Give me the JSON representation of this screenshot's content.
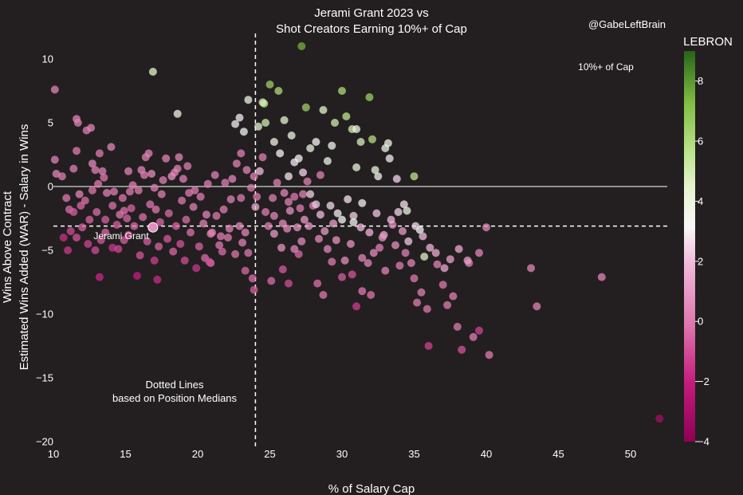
{
  "chart_data": {
    "type": "scatter",
    "title_line1": "Jerami Grant 2023 vs",
    "title_line2": "Shot Creators Earning 10%+ of Cap",
    "watermark": "@GabeLeftBrain",
    "xlabel": "% of Salary Cap",
    "ylabel_line1": "Wins Above Contract",
    "ylabel_line2": "Estimated Wins Added (WAR) - Salary in Wins",
    "xlim": [
      10,
      53
    ],
    "ylim": [
      -20,
      11
    ],
    "xticks": [
      "10",
      "15",
      "20",
      "25",
      "30",
      "35",
      "40",
      "45",
      "50"
    ],
    "yticks": [
      "10",
      "5",
      "0",
      "−5",
      "−10",
      "−15",
      "−20"
    ],
    "colorbar": {
      "label": "LEBRON",
      "range": [
        -4,
        9
      ],
      "ticks": [
        "8",
        "6",
        "4",
        "2",
        "0",
        "−2",
        "−4"
      ],
      "low_color": "#8e0152",
      "mid_color": "#f7f7f7",
      "high_color": "#276419"
    },
    "zero_line": 0,
    "median_x": 24,
    "median_y": -3.1,
    "annotations": {
      "cap_note": "10%+ of Cap",
      "player_label": "Jerami Grant",
      "medians_note_1": "Dotted Lines",
      "medians_note_2": "based on Position Medians"
    },
    "highlight": {
      "name": "Jerami Grant",
      "x": 16.9,
      "y": -3.2,
      "lebron": 0.6
    },
    "points": [
      [
        10.1,
        7.6,
        0.3
      ],
      [
        10.1,
        2.1,
        0.2
      ],
      [
        10.2,
        1.0,
        0.4
      ],
      [
        10.6,
        0.8,
        0.1
      ],
      [
        10.9,
        -0.9,
        0.0
      ],
      [
        11.1,
        -1.8,
        -0.3
      ],
      [
        11.4,
        1.4,
        0.2
      ],
      [
        11.6,
        2.8,
        0.1
      ],
      [
        11.8,
        -0.6,
        0.4
      ],
      [
        11.6,
        5.3,
        0.3
      ],
      [
        11.7,
        5.0,
        0.2
      ],
      [
        12.3,
        4.4,
        0.1
      ],
      [
        12.6,
        4.6,
        0.3
      ],
      [
        12.7,
        1.8,
        0.5
      ],
      [
        12.9,
        1.3,
        0.2
      ],
      [
        13.2,
        2.6,
        0.1
      ],
      [
        13.4,
        1.2,
        0.3
      ],
      [
        13.5,
        0.7,
        0.0
      ],
      [
        13.7,
        -0.5,
        0.2
      ],
      [
        14.0,
        3.1,
        0.4
      ],
      [
        14.2,
        -0.4,
        0.1
      ],
      [
        14.6,
        -2.2,
        0.0
      ],
      [
        14.9,
        -1.9,
        -0.2
      ],
      [
        15.2,
        1.2,
        0.3
      ],
      [
        15.5,
        0.1,
        0.2
      ],
      [
        15.9,
        -0.3,
        0.1
      ],
      [
        16.1,
        1.3,
        0.4
      ],
      [
        16.4,
        2.3,
        0.2
      ],
      [
        16.6,
        2.6,
        0.3
      ],
      [
        16.8,
        1.0,
        0.6
      ],
      [
        17.1,
        -1.8,
        0.0
      ],
      [
        17.5,
        -0.6,
        0.2
      ],
      [
        17.8,
        2.2,
        0.3
      ],
      [
        18.2,
        0.8,
        0.8
      ],
      [
        18.4,
        1.1,
        0.5
      ],
      [
        18.7,
        2.3,
        0.4
      ],
      [
        18.6,
        1.4,
        0.3
      ],
      [
        19.0,
        0.6,
        0.2
      ],
      [
        19.3,
        1.6,
        0.1
      ],
      [
        19.4,
        -0.5,
        0.0
      ],
      [
        19.7,
        -1.6,
        0.2
      ],
      [
        20.2,
        -0.8,
        0.1
      ],
      [
        20.6,
        -2.2,
        0.3
      ],
      [
        21.0,
        -3.6,
        0.2
      ],
      [
        21.3,
        -2.3,
        0.0
      ],
      [
        21.8,
        -1.8,
        0.1
      ],
      [
        21.9,
        0.3,
        0.2
      ],
      [
        22.3,
        -1.0,
        0.3
      ],
      [
        22.4,
        0.6,
        0.4
      ],
      [
        22.7,
        1.8,
        0.2
      ],
      [
        23.0,
        -0.9,
        0.1
      ],
      [
        23.0,
        2.6,
        0.2
      ],
      [
        23.4,
        1.3,
        0.3
      ],
      [
        23.7,
        -0.1,
        0.1
      ],
      [
        23.9,
        0.8,
        0.2
      ],
      [
        24.1,
        -0.8,
        0.0
      ],
      [
        24.5,
        2.3,
        0.2
      ],
      [
        24.7,
        -2.0,
        0.1
      ],
      [
        25.2,
        -0.9,
        0.2
      ],
      [
        25.5,
        0.3,
        0.3
      ],
      [
        26.0,
        -0.5,
        0.4
      ],
      [
        26.3,
        -1.2,
        0.2
      ],
      [
        26.7,
        -0.8,
        0.0
      ],
      [
        27.1,
        -1.7,
        0.1
      ],
      [
        27.3,
        -0.6,
        0.3
      ],
      [
        27.6,
        0.4,
        0.2
      ],
      [
        28.0,
        -1.5,
        0.2
      ],
      [
        28.5,
        0.9,
        0.3
      ],
      [
        11.2,
        -3.5,
        -1.0
      ],
      [
        11.6,
        -4.0,
        -0.8
      ],
      [
        12.0,
        -3.2,
        -0.5
      ],
      [
        12.4,
        -4.5,
        -1.2
      ],
      [
        12.9,
        -5.0,
        -1.0
      ],
      [
        13.3,
        -4.2,
        -0.7
      ],
      [
        13.6,
        -3.6,
        -0.4
      ],
      [
        14.1,
        -4.8,
        -1.5
      ],
      [
        14.5,
        -4.9,
        -1.1
      ],
      [
        14.9,
        -4.2,
        -0.6
      ],
      [
        15.2,
        -3.8,
        -0.9
      ],
      [
        15.6,
        -3.1,
        -0.3
      ],
      [
        16.0,
        -5.4,
        -0.8
      ],
      [
        16.5,
        -4.3,
        -0.6
      ],
      [
        17.0,
        -5.8,
        -1.3
      ],
      [
        17.3,
        -4.7,
        -0.5
      ],
      [
        17.9,
        -4.1,
        -0.7
      ],
      [
        18.3,
        -5.1,
        -0.4
      ],
      [
        18.8,
        -4.5,
        -0.9
      ],
      [
        19.1,
        -5.8,
        -1.0
      ],
      [
        19.5,
        -3.6,
        -0.2
      ],
      [
        20.1,
        -4.7,
        -0.5
      ],
      [
        20.5,
        -5.6,
        -0.3
      ],
      [
        20.9,
        -6.0,
        -0.2
      ],
      [
        21.5,
        -4.6,
        0.0
      ],
      [
        21.7,
        -5.1,
        -0.3
      ],
      [
        22.1,
        -4.0,
        0.1
      ],
      [
        22.6,
        -5.3,
        -0.1
      ],
      [
        23.1,
        -4.4,
        0.2
      ],
      [
        23.5,
        -5.2,
        0.0
      ],
      [
        23.3,
        -6.6,
        -0.4
      ],
      [
        23.8,
        -7.2,
        -0.2
      ],
      [
        11.0,
        -5.0,
        -1.4
      ],
      [
        10.7,
        -4.0,
        -1.6
      ],
      [
        13.2,
        -7.1,
        -1.8
      ],
      [
        15.8,
        -7.0,
        -2.0
      ],
      [
        17.2,
        -7.3,
        -1.7
      ],
      [
        19.9,
        -6.4,
        -1.5
      ],
      [
        20.8,
        -5.9,
        -0.9
      ],
      [
        23.9,
        -8.1,
        -0.6
      ],
      [
        25.1,
        -7.4,
        -0.3
      ],
      [
        25.9,
        -6.5,
        -0.7
      ],
      [
        26.3,
        -7.6,
        -1.0
      ],
      [
        27.0,
        -5.3,
        -0.4
      ],
      [
        28.3,
        -7.6,
        -0.2
      ],
      [
        28.7,
        -8.5,
        0.0
      ],
      [
        29.3,
        -5.9,
        0.1
      ],
      [
        30.0,
        -7.1,
        -0.6
      ],
      [
        30.7,
        -6.9,
        -0.8
      ],
      [
        31.0,
        -9.4,
        -1.3
      ],
      [
        31.4,
        -8.2,
        0.0
      ],
      [
        31.8,
        -6.0,
        0.4
      ],
      [
        32.0,
        -8.5,
        -0.1
      ],
      [
        32.6,
        -4.8,
        0.2
      ],
      [
        33.0,
        -6.6,
        0.3
      ],
      [
        33.5,
        -3.0,
        0.5
      ],
      [
        34.0,
        -6.2,
        0.1
      ],
      [
        34.4,
        -5.2,
        0.2
      ],
      [
        34.8,
        -6.0,
        0.4
      ],
      [
        35.0,
        -7.2,
        0.0
      ],
      [
        35.2,
        -9.1,
        0.1
      ],
      [
        35.5,
        -8.3,
        0.2
      ],
      [
        35.9,
        -9.6,
        0.0
      ],
      [
        36.0,
        -12.5,
        -1.2
      ],
      [
        36.6,
        -6.1,
        0.3
      ],
      [
        37.0,
        -7.7,
        0.0
      ],
      [
        37.3,
        -9.3,
        0.1
      ],
      [
        37.7,
        -8.6,
        0.2
      ],
      [
        38.0,
        -11.0,
        0.0
      ],
      [
        38.3,
        -12.8,
        -0.8
      ],
      [
        38.8,
        -6.0,
        0.3
      ],
      [
        39.1,
        -11.8,
        0.1
      ],
      [
        39.5,
        -11.3,
        -1.2
      ],
      [
        40.2,
        -13.2,
        0.1
      ],
      [
        39.5,
        -5.2,
        0.4
      ],
      [
        40.0,
        -3.2,
        0.5
      ],
      [
        43.1,
        -6.4,
        0.4
      ],
      [
        43.5,
        -9.4,
        0.3
      ],
      [
        48.0,
        -7.1,
        0.4
      ],
      [
        52.0,
        -18.2,
        -3.1
      ],
      [
        24.0,
        -1.6,
        1.5
      ],
      [
        24.3,
        1.2,
        2.0
      ],
      [
        24.6,
        6.5,
        5.5
      ],
      [
        25.0,
        8.0,
        6.5
      ],
      [
        25.6,
        7.5,
        6.0
      ],
      [
        26.0,
        5.2,
        4.5
      ],
      [
        26.5,
        4.0,
        3.8
      ],
      [
        27.0,
        2.2,
        3.5
      ],
      [
        27.2,
        11.0,
        7.5
      ],
      [
        27.5,
        6.2,
        6.5
      ],
      [
        27.8,
        3.0,
        4.0
      ],
      [
        28.2,
        3.5,
        3.2
      ],
      [
        28.7,
        6.0,
        4.5
      ],
      [
        29.0,
        2.0,
        3.8
      ],
      [
        29.5,
        5.0,
        5.0
      ],
      [
        30.0,
        7.5,
        6.0
      ],
      [
        30.3,
        5.5,
        5.5
      ],
      [
        30.7,
        4.5,
        5.0
      ],
      [
        31.0,
        1.5,
        4.2
      ],
      [
        31.3,
        3.5,
        4.8
      ],
      [
        31.9,
        7.0,
        6.5
      ],
      [
        32.1,
        3.7,
        5.8
      ],
      [
        32.3,
        1.3,
        4.0
      ],
      [
        32.5,
        0.8,
        3.5
      ],
      [
        33.0,
        3.0,
        4.0
      ],
      [
        33.3,
        2.2,
        3.0
      ],
      [
        33.8,
        0.6,
        2.5
      ],
      [
        34.5,
        -1.9,
        4.0
      ],
      [
        35.0,
        0.8,
        5.5
      ],
      [
        35.4,
        -3.4,
        3.2
      ],
      [
        35.7,
        -5.5,
        4.6
      ],
      [
        22.9,
        5.4,
        3.0
      ],
      [
        23.2,
        4.3,
        3.5
      ],
      [
        23.5,
        6.8,
        4.0
      ],
      [
        24.2,
        4.7,
        4.5
      ],
      [
        24.7,
        5.0,
        5.0
      ],
      [
        25.3,
        3.5,
        3.8
      ],
      [
        25.7,
        2.6,
        3.2
      ],
      [
        26.3,
        0.8,
        2.8
      ],
      [
        26.7,
        1.9,
        3.0
      ],
      [
        27.3,
        1.1,
        2.5
      ],
      [
        27.8,
        -0.6,
        2.4
      ],
      [
        28.2,
        -1.4,
        2.2
      ],
      [
        28.5,
        -2.2,
        2.0
      ],
      [
        29.2,
        -1.5,
        2.6
      ],
      [
        29.7,
        -2.1,
        3.0
      ],
      [
        30.0,
        -2.6,
        3.3
      ],
      [
        30.4,
        -1.0,
        2.8
      ],
      [
        30.8,
        -2.3,
        2.4
      ],
      [
        31.3,
        -3.2,
        2.0
      ],
      [
        31.9,
        -3.6,
        1.8
      ],
      [
        32.4,
        -2.1,
        2.2
      ],
      [
        32.9,
        -3.8,
        1.6
      ],
      [
        33.4,
        -2.6,
        2.0
      ],
      [
        33.9,
        -2.0,
        2.5
      ],
      [
        34.3,
        -1.4,
        2.8
      ],
      [
        34.6,
        -4.3,
        2.2
      ],
      [
        35.1,
        -3.1,
        2.6
      ],
      [
        35.6,
        -3.9,
        2.0
      ],
      [
        36.1,
        -4.8,
        1.8
      ],
      [
        36.5,
        -5.2,
        1.5
      ],
      [
        37.1,
        -6.4,
        1.4
      ],
      [
        37.5,
        -5.7,
        1.2
      ],
      [
        38.1,
        -4.9,
        1.5
      ],
      [
        38.7,
        -5.8,
        1.2
      ],
      [
        16.9,
        9.0,
        4.5
      ],
      [
        18.6,
        5.7,
        3.8
      ],
      [
        22.6,
        4.9,
        3.0
      ],
      [
        24.5,
        6.6,
        4.8
      ],
      [
        29.3,
        3.2,
        3.5
      ],
      [
        31.0,
        4.5,
        4.0
      ],
      [
        33.2,
        3.4,
        3.8
      ],
      [
        30.8,
        -2.8,
        3.5
      ],
      [
        31.4,
        -1.3,
        3.0
      ],
      [
        25.3,
        -3.7,
        1.0
      ],
      [
        25.8,
        -4.8,
        0.8
      ],
      [
        26.2,
        -3.3,
        0.6
      ],
      [
        26.7,
        -4.9,
        0.4
      ],
      [
        27.2,
        -4.3,
        0.5
      ],
      [
        27.7,
        -3.1,
        0.9
      ],
      [
        28.4,
        -4.1,
        0.6
      ],
      [
        29.0,
        -4.9,
        0.5
      ],
      [
        29.6,
        -4.2,
        0.8
      ],
      [
        30.2,
        -5.8,
        0.6
      ],
      [
        30.6,
        -4.5,
        0.8
      ],
      [
        31.4,
        -5.6,
        0.4
      ],
      [
        32.2,
        -5.2,
        0.6
      ],
      [
        32.8,
        -4.0,
        0.9
      ],
      [
        33.7,
        -4.6,
        0.7
      ],
      [
        34.2,
        -3.5,
        1.0
      ],
      [
        24.9,
        -3.1,
        0.2
      ],
      [
        25.3,
        -2.3,
        0.4
      ],
      [
        25.9,
        -2.9,
        0.6
      ],
      [
        26.4,
        -1.9,
        0.7
      ],
      [
        26.9,
        -3.2,
        0.8
      ],
      [
        27.4,
        -2.6,
        1.0
      ],
      [
        28.8,
        -3.5,
        1.1
      ],
      [
        29.4,
        -2.9,
        1.2
      ],
      [
        21.6,
        -3.9,
        0.1
      ],
      [
        22.2,
        -3.3,
        0.3
      ],
      [
        22.9,
        -3.1,
        0.5
      ],
      [
        23.3,
        -3.6,
        0.4
      ],
      [
        20.4,
        -2.9,
        0.2
      ],
      [
        20.9,
        -3.7,
        0.3
      ],
      [
        11.4,
        -2.0,
        -0.6
      ],
      [
        11.9,
        -1.5,
        -0.4
      ],
      [
        12.5,
        -2.6,
        -0.5
      ],
      [
        13.0,
        -2.0,
        -0.3
      ],
      [
        13.6,
        -2.6,
        -0.6
      ],
      [
        14.1,
        -1.5,
        -0.2
      ],
      [
        14.4,
        -3.0,
        -0.6
      ],
      [
        15.1,
        -2.5,
        -0.4
      ],
      [
        15.4,
        -1.7,
        -0.5
      ],
      [
        16.2,
        -2.4,
        -0.2
      ],
      [
        16.7,
        -1.4,
        -0.1
      ],
      [
        17.4,
        -2.8,
        -0.4
      ],
      [
        18.0,
        -2.1,
        -0.3
      ],
      [
        18.5,
        -3.1,
        -0.5
      ],
      [
        19.2,
        -2.6,
        -0.3
      ],
      [
        12.2,
        -1.1,
        -0.2
      ],
      [
        12.7,
        -0.3,
        0.0
      ],
      [
        13.1,
        0.2,
        0.1
      ],
      [
        14.8,
        -0.9,
        0.0
      ],
      [
        15.3,
        -0.4,
        0.1
      ],
      [
        16.3,
        0.9,
        0.2
      ],
      [
        17.0,
        -0.1,
        0.1
      ],
      [
        17.6,
        0.5,
        0.2
      ],
      [
        18.9,
        -1.1,
        0.0
      ],
      [
        19.8,
        -0.3,
        0.1
      ],
      [
        20.7,
        0.2,
        0.2
      ],
      [
        21.2,
        0.9,
        0.3
      ]
    ]
  }
}
